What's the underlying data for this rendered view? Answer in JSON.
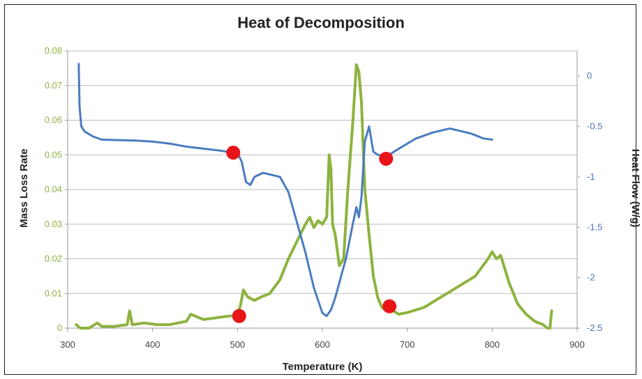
{
  "chart_data": {
    "type": "line",
    "title": "Heat of Decomposition",
    "xlabel": "Temperature (K)",
    "ylabel_left": "Mass Loss Rate",
    "ylabel_right": "Heat Flow (W/g)",
    "xlim": [
      300,
      900
    ],
    "ylim_left": [
      0,
      0.08
    ],
    "ylim_right": [
      -2.5,
      0.25
    ],
    "x_ticks": [
      "300",
      "400",
      "500",
      "600",
      "700",
      "800",
      "900"
    ],
    "y_left_ticks": [
      "0",
      "0.01",
      "0.02",
      "0.03",
      "0.04",
      "0.05",
      "0.06",
      "0.07",
      "0.08"
    ],
    "y_right_ticks": [
      "0",
      "-0.5",
      "-1",
      "-1.5",
      "-2",
      "-2.5"
    ],
    "grid": true,
    "colors": {
      "mass_loss": "#8db33f",
      "heat_flow": "#4a7cc0",
      "markers": "#e8141a"
    },
    "series": [
      {
        "axis": "left",
        "x": [
          310,
          315,
          325,
          335,
          340,
          355,
          370,
          373,
          376,
          390,
          405,
          420,
          440,
          445,
          460,
          475,
          490,
          497,
          503,
          507,
          512,
          520,
          528,
          538,
          550,
          560,
          570,
          580,
          585,
          590,
          595,
          600,
          605,
          608,
          610,
          612,
          615,
          620,
          625,
          630,
          636,
          640,
          643,
          646,
          650,
          655,
          660,
          665,
          670,
          675,
          680,
          690,
          700,
          720,
          740,
          760,
          780,
          795,
          800,
          805,
          810,
          820,
          830,
          840,
          850,
          860,
          865,
          868,
          870
        ],
        "values": [
          0.001,
          0.0,
          0.0,
          0.0015,
          0.0005,
          0.0005,
          0.001,
          0.005,
          0.001,
          0.0015,
          0.001,
          0.001,
          0.002,
          0.004,
          0.0025,
          0.003,
          0.0035,
          0.0035,
          0.006,
          0.011,
          0.009,
          0.008,
          0.009,
          0.01,
          0.014,
          0.02,
          0.025,
          0.03,
          0.032,
          0.029,
          0.031,
          0.03,
          0.032,
          0.05,
          0.046,
          0.03,
          0.027,
          0.018,
          0.02,
          0.04,
          0.06,
          0.076,
          0.074,
          0.065,
          0.04,
          0.027,
          0.015,
          0.009,
          0.006,
          0.005,
          0.0055,
          0.004,
          0.0045,
          0.006,
          0.009,
          0.012,
          0.015,
          0.02,
          0.022,
          0.02,
          0.021,
          0.013,
          0.007,
          0.004,
          0.002,
          0.001,
          0.0,
          0.0,
          0.005
        ]
      },
      {
        "axis": "right",
        "x": [
          313,
          314,
          316,
          320,
          330,
          340,
          360,
          380,
          400,
          420,
          440,
          460,
          480,
          495,
          500,
          505,
          510,
          515,
          520,
          530,
          540,
          550,
          560,
          570,
          580,
          590,
          600,
          605,
          610,
          615,
          620,
          628,
          635,
          640,
          643,
          646,
          650,
          655,
          660,
          665,
          675,
          690,
          710,
          730,
          750,
          760,
          775,
          790,
          800
        ],
        "values": [
          0.12,
          -0.3,
          -0.5,
          -0.55,
          -0.6,
          -0.63,
          -0.635,
          -0.64,
          -0.65,
          -0.67,
          -0.7,
          -0.72,
          -0.74,
          -0.76,
          -0.76,
          -0.85,
          -1.05,
          -1.08,
          -1.0,
          -0.96,
          -0.98,
          -1.0,
          -1.15,
          -1.45,
          -1.75,
          -2.1,
          -2.35,
          -2.38,
          -2.32,
          -2.2,
          -2.05,
          -1.8,
          -1.5,
          -1.3,
          -1.4,
          -1.2,
          -0.65,
          -0.5,
          -0.75,
          -0.78,
          -0.8,
          -0.72,
          -0.62,
          -0.56,
          -0.52,
          -0.54,
          -0.57,
          -0.62,
          -0.63
        ]
      }
    ],
    "markers": [
      {
        "axis": "left",
        "x": 502,
        "value": 0.0035
      },
      {
        "axis": "left",
        "x": 679,
        "value": 0.0063
      },
      {
        "axis": "right",
        "x": 495,
        "value": -0.76
      },
      {
        "axis": "right",
        "x": 675,
        "value": -0.82
      }
    ]
  }
}
